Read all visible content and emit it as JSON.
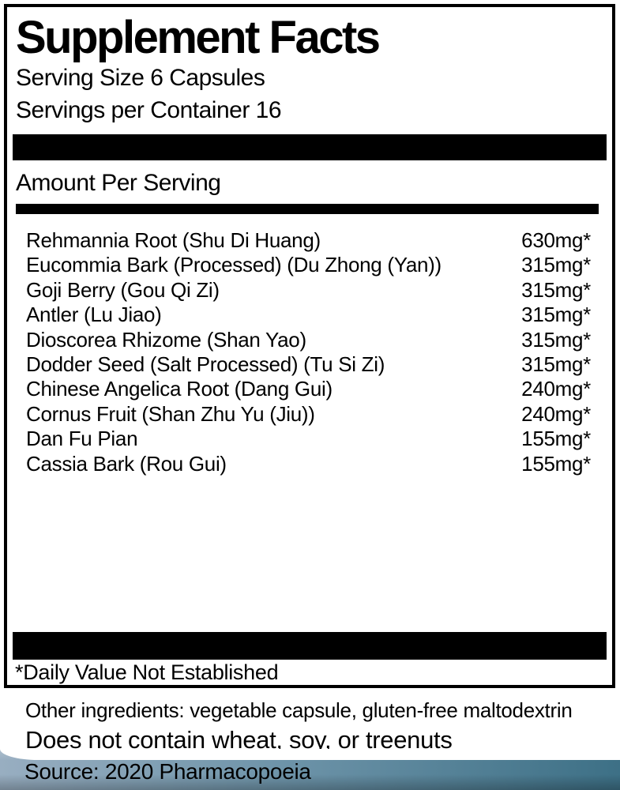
{
  "label": {
    "title": "Supplement Facts",
    "serving_size": "Serving Size 6 Capsules",
    "servings_per_container": "Servings per Container 16",
    "amount_per_serving_heading": "Amount Per Serving",
    "ingredients": [
      {
        "name": "Rehmannia Root (Shu Di Huang)",
        "amount": "630mg*"
      },
      {
        "name": "Eucommia Bark (Processed) (Du Zhong (Yan))",
        "amount": "315mg*"
      },
      {
        "name": "Goji Berry (Gou Qi Zi)",
        "amount": "315mg*"
      },
      {
        "name": "Antler (Lu Jiao)",
        "amount": "315mg*"
      },
      {
        "name": "Dioscorea Rhizome (Shan Yao)",
        "amount": "315mg*"
      },
      {
        "name": "Dodder Seed (Salt Processed) (Tu Si Zi)",
        "amount": "315mg*"
      },
      {
        "name": "Chinese Angelica Root (Dang Gui)",
        "amount": "240mg*"
      },
      {
        "name": "Cornus Fruit (Shan Zhu Yu (Jiu))",
        "amount": "240mg*"
      },
      {
        "name": "Dan Fu Pian",
        "amount": "155mg*"
      },
      {
        "name": "Cassia Bark (Rou Gui)",
        "amount": "155mg*"
      }
    ],
    "daily_value_note": "*Daily Value Not Established",
    "other_ingredients": "Other ingredients: vegetable capsule, gluten-free maltodextrin",
    "allergen_statement": "Does not contain wheat, soy, or treenuts",
    "source": "Source: 2020 Pharmacopoeia"
  },
  "colors": {
    "band-left": "#98aec1",
    "band-right": "#3d7086",
    "text": "#000000",
    "background": "#ffffff"
  }
}
